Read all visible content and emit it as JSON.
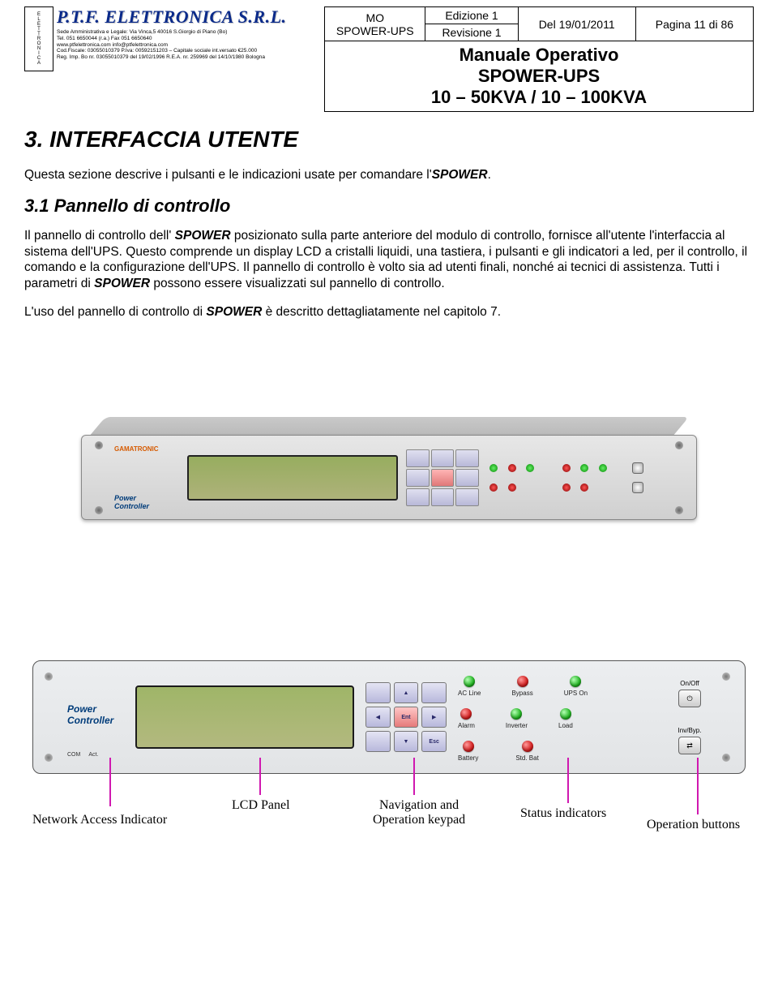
{
  "header": {
    "company_name": "P.T.F. ELETTRONICA S.R.L.",
    "company_address": "Sede Amministrativa e Legale: Via Vinca,5 40016 S.Giorgio di Piano (Bo)\nTel. 051 6650044 (r.a.)  Fax 051 6650640\nwww.ptfelettronica.com  info@ptfelettronica.com\nCod.Fiscale: 03055010379 P.Iva: 00592151203 – Capitale sociale int.versato €25.000\nReg. Imp. Bo nr. 03055010379 del 19/02/1996 R.E.A. nr. 259969 del 14/10/1980 Bologna",
    "logo_letters": "ELETTRONICA",
    "col1_top": "MO",
    "col1_bot": "SPOWER-UPS",
    "col2_top": "Edizione 1",
    "col2_bot": "Revisione 1",
    "col3": "Del 19/01/2011",
    "col4": "Pagina 11 di 86",
    "title1": "Manuale Operativo",
    "title2": "SPOWER-UPS",
    "title3": "10 – 50KVA / 10 – 100KVA"
  },
  "section": {
    "heading": "3. INTERFACCIA UTENTE",
    "intro_pre": "Questa sezione descrive i pulsanti e le indicazioni usate per comandare l'",
    "intro_bold": "SPOWER",
    "intro_post": ".",
    "sub_heading": "3.1 Pannello di controllo",
    "para_main": "Il pannello di controllo dell' SPOWER posizionato sulla parte anteriore del modulo di controllo, fornisce all'utente l'interfaccia al sistema dell'UPS. Questo comprende un display LCD a cristalli liquidi, una tastiera, i pulsanti e gli indicatori a led, per il controllo, il comando e la configurazione dell'UPS. Il pannello di controllo è volto sia ad utenti finali, nonché ai tecnici di assistenza. Tutti i parametri di SPOWER possono essere visualizzati sul pannello di controllo.",
    "para2_pre": "L'uso del pannello di controllo di ",
    "para2_bold": "SPOWER",
    "para2_post": " è descritto dettagliatamente nel capitolo 7."
  },
  "panel3d": {
    "brand": "GAMATRONIC",
    "pc": "Power\nController"
  },
  "panel_flat": {
    "pc": "Power\nController",
    "ports": {
      "a": "COM",
      "b": "Act."
    },
    "keypad": {
      "up": "▲",
      "down": "▼",
      "left": "◀",
      "right": "▶",
      "ent": "Ent",
      "esc": "Esc"
    },
    "leds_row1": [
      {
        "label": "AC Line",
        "color": "green"
      },
      {
        "label": "Bypass",
        "color": "red"
      },
      {
        "label": "UPS On",
        "color": "green"
      }
    ],
    "leds_row2_a": [
      {
        "label": "Alarm",
        "color": "red"
      },
      {
        "label": "Inverter",
        "color": "green"
      },
      {
        "label": "Load",
        "color": "green"
      }
    ],
    "leds_row3": [
      {
        "label": "Battery",
        "color": "red"
      },
      {
        "label": "Std. Bat",
        "color": "red"
      }
    ],
    "op_buttons": [
      {
        "label": "On/Off",
        "glyph": "⏻"
      },
      {
        "label": "Inv/Byp.",
        "glyph": "⇄"
      }
    ]
  },
  "callouts": {
    "net": "Network Access Indicator",
    "lcd": "LCD Panel",
    "nav": "Navigation and\nOperation keypad",
    "status": "Status indicators",
    "op": "Operation buttons"
  }
}
